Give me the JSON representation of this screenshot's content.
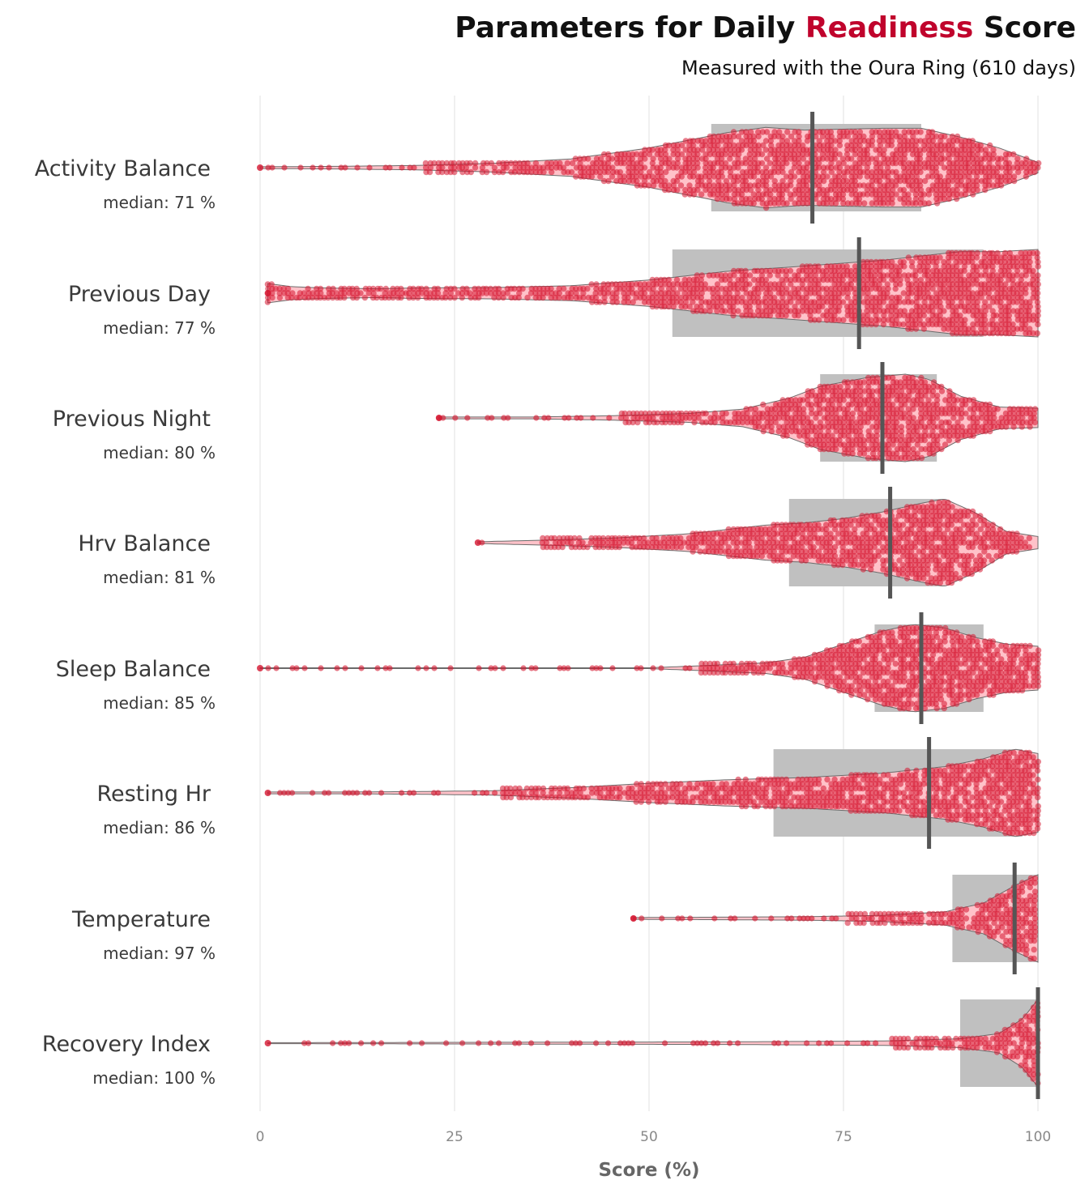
{
  "chart_data": {
    "type": "violin",
    "title_parts": [
      {
        "text": "Parameters for Daily ",
        "accent": false
      },
      {
        "text": "Readiness",
        "accent": true
      },
      {
        "text": " Score",
        "accent": false
      }
    ],
    "subtitle": "Measured with the Oura Ring (610 days)",
    "xlabel": "Score (%)",
    "xlim": [
      0,
      100
    ],
    "xticks": [
      0,
      25,
      50,
      75,
      100
    ],
    "grid": "vertical",
    "colors": {
      "accent": "#c0032c",
      "violin_fill": "#ffc2c9",
      "violin_stroke": "#6b6b6b",
      "dot": "#d5152f",
      "box": "#c0c0c0",
      "median_line": "#555555"
    },
    "categories": [
      {
        "name": "Activity Balance",
        "median_label": "median: 71 %",
        "median": 71,
        "q1": 58,
        "q3": 85,
        "min": 0,
        "max": 100,
        "density": [
          [
            0,
            0.02
          ],
          [
            10,
            0.03
          ],
          [
            20,
            0.05
          ],
          [
            30,
            0.1
          ],
          [
            40,
            0.2
          ],
          [
            50,
            0.45
          ],
          [
            60,
            0.8
          ],
          [
            65,
            0.92
          ],
          [
            70,
            0.86
          ],
          [
            75,
            0.88
          ],
          [
            80,
            0.9
          ],
          [
            85,
            0.9
          ],
          [
            90,
            0.7
          ],
          [
            95,
            0.45
          ],
          [
            100,
            0.12
          ]
        ]
      },
      {
        "name": "Previous Day",
        "median_label": "median: 77 %",
        "median": 77,
        "q1": 53,
        "q3": 93,
        "min": 1,
        "max": 100,
        "density": [
          [
            1,
            0.22
          ],
          [
            4,
            0.15
          ],
          [
            8,
            0.12
          ],
          [
            15,
            0.1
          ],
          [
            20,
            0.12
          ],
          [
            30,
            0.13
          ],
          [
            40,
            0.17
          ],
          [
            50,
            0.3
          ],
          [
            60,
            0.5
          ],
          [
            70,
            0.62
          ],
          [
            80,
            0.75
          ],
          [
            85,
            0.85
          ],
          [
            90,
            0.95
          ],
          [
            95,
            0.95
          ],
          [
            100,
            1.0
          ]
        ]
      },
      {
        "name": "Previous Night",
        "median_label": "median: 80 %",
        "median": 80,
        "q1": 72,
        "q3": 87,
        "min": 23,
        "max": 100,
        "density": [
          [
            23,
            0.02
          ],
          [
            35,
            0.02
          ],
          [
            45,
            0.05
          ],
          [
            55,
            0.1
          ],
          [
            62,
            0.2
          ],
          [
            68,
            0.45
          ],
          [
            72,
            0.72
          ],
          [
            78,
            0.92
          ],
          [
            83,
            1.0
          ],
          [
            86,
            0.88
          ],
          [
            90,
            0.5
          ],
          [
            95,
            0.25
          ],
          [
            100,
            0.22
          ]
        ]
      },
      {
        "name": "Hrv Balance",
        "median_label": "median: 81 %",
        "median": 81,
        "q1": 68,
        "q3": 88,
        "min": 28,
        "max": 100,
        "density": [
          [
            28,
            0.02
          ],
          [
            35,
            0.05
          ],
          [
            45,
            0.1
          ],
          [
            55,
            0.2
          ],
          [
            65,
            0.4
          ],
          [
            70,
            0.45
          ],
          [
            75,
            0.55
          ],
          [
            80,
            0.7
          ],
          [
            85,
            0.9
          ],
          [
            88,
            1.0
          ],
          [
            92,
            0.68
          ],
          [
            96,
            0.25
          ],
          [
            100,
            0.14
          ]
        ]
      },
      {
        "name": "Sleep Balance",
        "median_label": "median: 85 %",
        "median": 85,
        "q1": 79,
        "q3": 93,
        "min": 0,
        "max": 100,
        "density": [
          [
            0,
            0.01
          ],
          [
            50,
            0.01
          ],
          [
            56,
            0.05
          ],
          [
            65,
            0.12
          ],
          [
            70,
            0.25
          ],
          [
            75,
            0.55
          ],
          [
            80,
            0.85
          ],
          [
            84,
            1.0
          ],
          [
            88,
            0.92
          ],
          [
            92,
            0.7
          ],
          [
            96,
            0.55
          ],
          [
            100,
            0.5
          ]
        ]
      },
      {
        "name": "Resting Hr",
        "median_label": "median: 86 %",
        "median": 86,
        "q1": 66,
        "q3": 98,
        "min": 1,
        "max": 100,
        "density": [
          [
            1,
            0.02
          ],
          [
            10,
            0.02
          ],
          [
            20,
            0.03
          ],
          [
            30,
            0.05
          ],
          [
            40,
            0.12
          ],
          [
            50,
            0.22
          ],
          [
            60,
            0.3
          ],
          [
            70,
            0.35
          ],
          [
            80,
            0.45
          ],
          [
            88,
            0.6
          ],
          [
            93,
            0.78
          ],
          [
            97,
            1.0
          ],
          [
            100,
            0.9
          ]
        ]
      },
      {
        "name": "Temperature",
        "median_label": "median: 97 %",
        "median": 97,
        "q1": 89,
        "q3": 100,
        "min": 48,
        "max": 100,
        "density": [
          [
            48,
            0.02
          ],
          [
            60,
            0.03
          ],
          [
            70,
            0.04
          ],
          [
            80,
            0.07
          ],
          [
            88,
            0.15
          ],
          [
            93,
            0.35
          ],
          [
            97,
            0.75
          ],
          [
            100,
            1.0
          ]
        ]
      },
      {
        "name": "Recovery Index",
        "median_label": "median: 100 %",
        "median": 100,
        "q1": 90,
        "q3": 100,
        "min": 1,
        "max": 100,
        "density": [
          [
            1,
            0.01
          ],
          [
            30,
            0.02
          ],
          [
            60,
            0.03
          ],
          [
            80,
            0.05
          ],
          [
            90,
            0.1
          ],
          [
            95,
            0.22
          ],
          [
            98,
            0.55
          ],
          [
            100,
            1.0
          ]
        ]
      }
    ]
  }
}
